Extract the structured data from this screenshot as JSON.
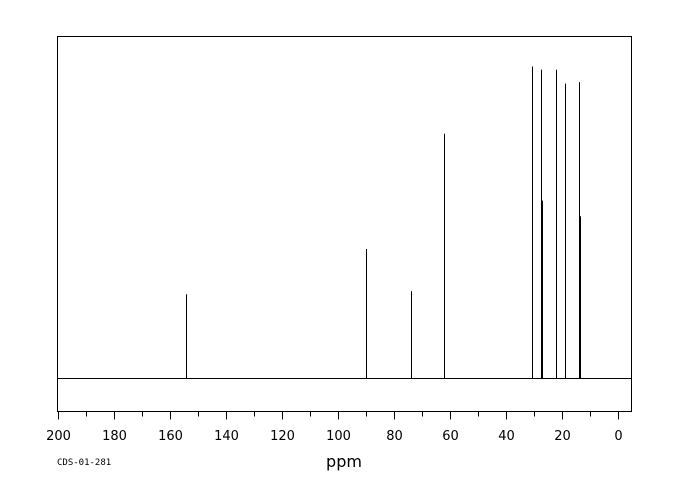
{
  "chart_data": {
    "type": "line",
    "subtype": "nmr-stick-spectrum",
    "title": "",
    "xlabel": "ppm",
    "ylabel": "",
    "xlim": [
      200,
      -5
    ],
    "x_reversed": true,
    "ylim": [
      0,
      1
    ],
    "grid": false,
    "legend": "none",
    "ticks": [
      200,
      180,
      160,
      140,
      120,
      100,
      80,
      60,
      40,
      20,
      0
    ],
    "tick_labels": [
      "200",
      "180",
      "160",
      "140",
      "120",
      "100",
      "80",
      "60",
      "40",
      "20",
      "0"
    ],
    "peaks": [
      {
        "ppm": 154.0,
        "intensity": 0.27
      },
      {
        "ppm": 89.7,
        "intensity": 0.415
      },
      {
        "ppm": 73.9,
        "intensity": 0.28
      },
      {
        "ppm": 62.1,
        "intensity": 0.785
      },
      {
        "ppm": 30.5,
        "intensity": 1.0
      },
      {
        "ppm": 27.2,
        "intensity": 0.99
      },
      {
        "ppm": 22.1,
        "intensity": 0.99
      },
      {
        "ppm": 18.6,
        "intensity": 0.945
      },
      {
        "ppm": 13.6,
        "intensity": 0.95
      }
    ],
    "side_peaks": [
      {
        "ppm": 26.9,
        "intensity": 0.57
      },
      {
        "ppm": 13.3,
        "intensity": 0.52
      }
    ],
    "annotation": "CDS-01-281",
    "line_color": "#000000"
  }
}
